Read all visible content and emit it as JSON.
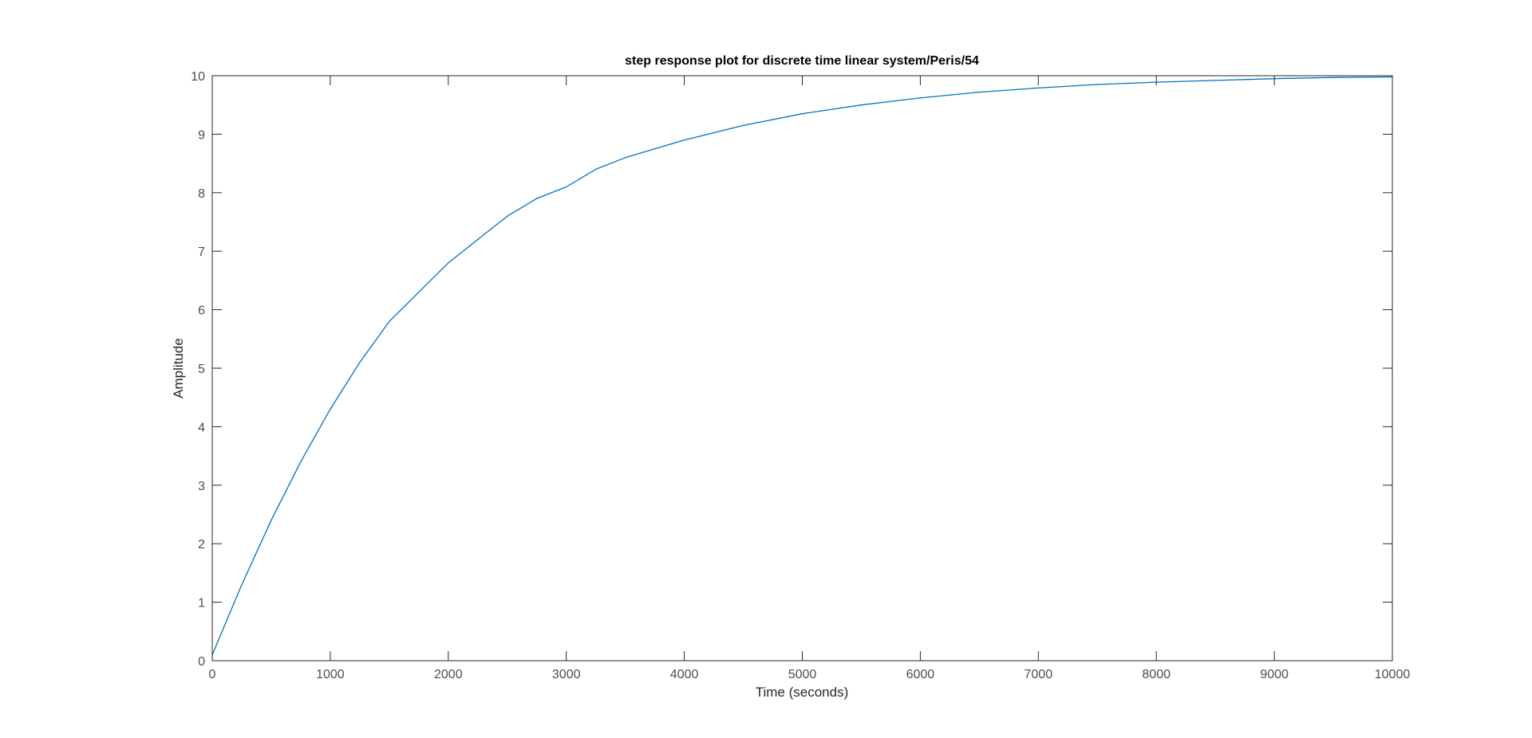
{
  "chart_data": {
    "type": "line",
    "title": "step response plot for discrete time linear system/Peris/54",
    "xlabel": "Time (seconds)",
    "ylabel": "Amplitude",
    "xlim": [
      0,
      10000
    ],
    "ylim": [
      0,
      10
    ],
    "xticks": [
      0,
      1000,
      2000,
      3000,
      4000,
      5000,
      6000,
      7000,
      8000,
      9000,
      10000
    ],
    "yticks": [
      0,
      1,
      2,
      3,
      4,
      5,
      6,
      7,
      8,
      9,
      10
    ],
    "xtick_labels": [
      "0",
      "1000",
      "2000",
      "3000",
      "4000",
      "5000",
      "6000",
      "7000",
      "8000",
      "9000",
      "10000"
    ],
    "ytick_labels": [
      "0",
      "1",
      "2",
      "3",
      "4",
      "5",
      "6",
      "7",
      "8",
      "9",
      "10"
    ],
    "grid": false,
    "reference_lines": [
      {
        "y": 10,
        "style": "dotted"
      }
    ],
    "series": [
      {
        "color": "#0072bd",
        "x": [
          0,
          250,
          500,
          750,
          1000,
          1250,
          1500,
          1750,
          2000,
          2250,
          2500,
          2750,
          3000,
          3250,
          3500,
          3750,
          4000,
          4500,
          5000,
          5500,
          6000,
          6500,
          7000,
          7500,
          8000,
          8500,
          9000,
          9500,
          10000
        ],
        "values": [
          0.1,
          1.3,
          2.4,
          3.4,
          4.3,
          5.1,
          5.8,
          6.3,
          6.8,
          7.2,
          7.6,
          7.9,
          8.1,
          8.4,
          8.6,
          8.75,
          8.9,
          9.15,
          9.35,
          9.5,
          9.62,
          9.72,
          9.79,
          9.85,
          9.89,
          9.92,
          9.95,
          9.97,
          9.98
        ]
      }
    ]
  }
}
